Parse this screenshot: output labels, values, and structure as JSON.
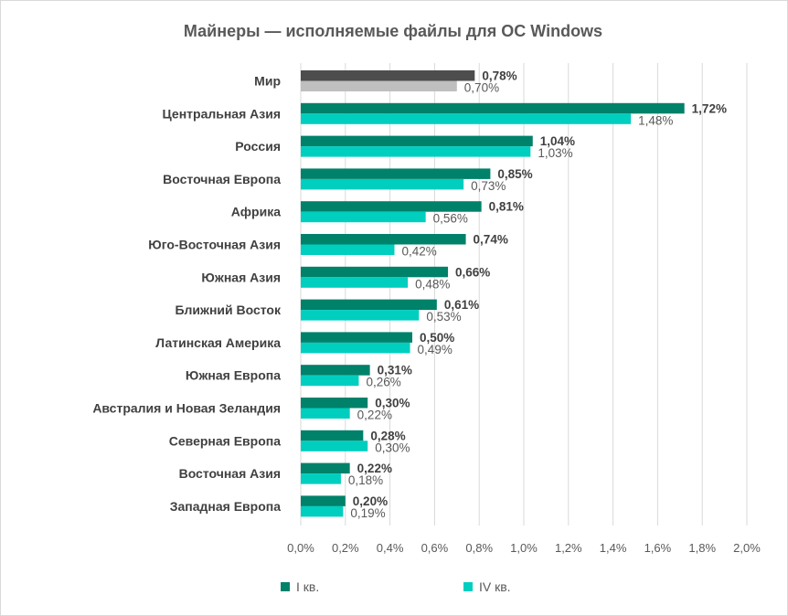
{
  "chart_data": {
    "type": "bar",
    "orientation": "horizontal",
    "title": "Майнеры — исполняемые файлы для ОС Windows",
    "categories": [
      "Мир",
      "Центральная Азия",
      "Россия",
      "Восточная Европа",
      "Африка",
      "Юго-Восточная Азия",
      "Южная Азия",
      "Ближний Восток",
      "Латинская Америка",
      "Южная Европа",
      "Австралия и Новая Зеландия",
      "Северная Европа",
      "Восточная Азия",
      "Западная Европа"
    ],
    "series": [
      {
        "name": "I кв.",
        "color": "#00816a",
        "highlight_color": "#4d4d4d",
        "values": [
          0.78,
          1.72,
          1.04,
          0.85,
          0.81,
          0.74,
          0.66,
          0.61,
          0.5,
          0.31,
          0.3,
          0.28,
          0.22,
          0.2
        ],
        "labels": [
          "0,78%",
          "1,72%",
          "1,04%",
          "0,85%",
          "0,81%",
          "0,74%",
          "0,66%",
          "0,61%",
          "0,50%",
          "0,31%",
          "0,30%",
          "0,28%",
          "0,22%",
          "0,20%"
        ]
      },
      {
        "name": "IV кв.",
        "color": "#00cebf",
        "highlight_color": "#bfbfbf",
        "values": [
          0.7,
          1.48,
          1.03,
          0.73,
          0.56,
          0.42,
          0.48,
          0.53,
          0.49,
          0.26,
          0.22,
          0.3,
          0.18,
          0.19
        ],
        "labels": [
          "0,70%",
          "1,48%",
          "1,03%",
          "0,73%",
          "0,56%",
          "0,42%",
          "0,48%",
          "0,53%",
          "0,49%",
          "0,26%",
          "0,22%",
          "0,30%",
          "0,18%",
          "0,19%"
        ]
      }
    ],
    "xlim": [
      0,
      2.0
    ],
    "x_ticks": [
      0,
      0.2,
      0.4,
      0.6,
      0.8,
      1.0,
      1.2,
      1.4,
      1.6,
      1.8,
      2.0
    ],
    "x_tick_labels": [
      "0,0%",
      "0,2%",
      "0,4%",
      "0,6%",
      "0,8%",
      "1,0%",
      "1,2%",
      "1,4%",
      "1,6%",
      "1,8%",
      "2,0%"
    ],
    "grid": "vertical",
    "gridline_color": "#d9d9d9",
    "legend": "bottom"
  }
}
